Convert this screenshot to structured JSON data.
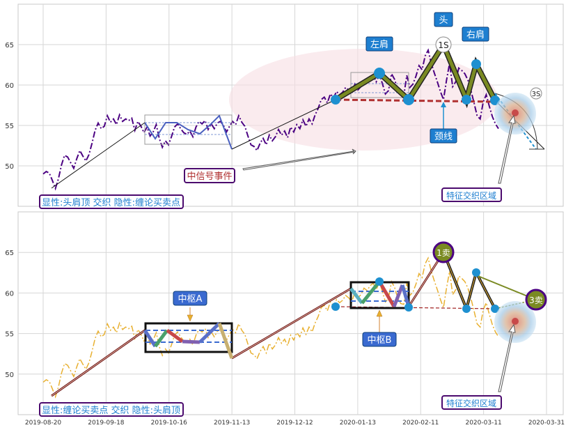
{
  "chart_data": [
    {
      "type": "line",
      "title": "",
      "xlabel": "",
      "ylabel": "",
      "x_tick_labels": [
        "2019-08-20",
        "2019-09-18",
        "2019-10-16",
        "2019-11-13",
        "2019-12-12",
        "2020-01-13",
        "2020-02-11",
        "2020-03-11",
        "2020-03-31"
      ],
      "y_ticks": [
        50,
        55,
        60,
        65
      ],
      "ylim": [
        45,
        70
      ],
      "grid": true,
      "background": "#ffffff",
      "series": [
        {
          "values": [
            49,
            49.3,
            49.1,
            48.2,
            47.2,
            48.4,
            50.1,
            51.3,
            51.1,
            50.4,
            49.7,
            50.9,
            51.9,
            51.2,
            50.6,
            51.4,
            52.8,
            54.4,
            55.3,
            54.6,
            54.9,
            56.2,
            55.4,
            55.8,
            55.1,
            56.3,
            55.5,
            55.8,
            55.6,
            55.9,
            54.4,
            55.5,
            54.9,
            54.1,
            54.8,
            53.7,
            54.2,
            55.1,
            53.4,
            52.3,
            53.1,
            52.6,
            53.6,
            54.8,
            55.2,
            54.6,
            54.1,
            53.9,
            54.3,
            53.6,
            54.8,
            55.5,
            55.2,
            55.6,
            54.5,
            55.2,
            54.6,
            55.3,
            55.5,
            55,
            54.2,
            54.9,
            55.5,
            55.1,
            56.2,
            55.4,
            54.9,
            53.7,
            52.6,
            52.4,
            51.9,
            52.8,
            53.4,
            52.6,
            53.8,
            53.1,
            53.6,
            54.5,
            53.8,
            54.3,
            53.5,
            54.8,
            54.2,
            55.1,
            54.6,
            55.7,
            54.9,
            55.8,
            55.2,
            56.3,
            57.1,
            58.2,
            58.5,
            57.8,
            58.9,
            58.4,
            59.2,
            58.8,
            59.1,
            59.7,
            59.4,
            58.9,
            60.1,
            59.4,
            59.8,
            60.6,
            60.3,
            60.9,
            61.2,
            60.4,
            61.3,
            60.2,
            58.9,
            59.3,
            61.4,
            60.7,
            59.4,
            58.7,
            58.6,
            61.2,
            59.7,
            60.1,
            61.1,
            62.4,
            61.9,
            63.6,
            64.3,
            62.7,
            61.5,
            60.4,
            59.2,
            58.2,
            60.6,
            62.7,
            59.8,
            60.4,
            62.1,
            61.8,
            61.4,
            60.6,
            59.3,
            57.8,
            56.2,
            55.8,
            57.9,
            58.8,
            57.4,
            56.1,
            55.2,
            54.6
          ]
        }
      ]
    },
    {
      "type": "line",
      "title": "",
      "xlabel": "",
      "ylabel": "",
      "x_tick_labels": [
        "2019-08-20",
        "2019-09-18",
        "2019-10-16",
        "2019-11-13",
        "2019-12-12",
        "2020-01-13",
        "2020-02-11",
        "2020-03-11",
        "2020-03-31"
      ],
      "y_ticks": [
        50,
        55,
        60,
        65
      ],
      "ylim": [
        45,
        70
      ],
      "grid": true,
      "background": "#ffffff",
      "series": [
        {
          "values": [
            49,
            49.3,
            49.1,
            48.2,
            47.2,
            48.4,
            50.1,
            51.3,
            51.1,
            50.4,
            49.7,
            50.9,
            51.9,
            51.2,
            50.6,
            51.4,
            52.8,
            54.4,
            55.3,
            54.6,
            54.9,
            56.2,
            55.4,
            55.8,
            55.1,
            56.3,
            55.5,
            55.8,
            55.6,
            55.9,
            54.4,
            55.5,
            54.9,
            54.1,
            54.8,
            53.7,
            54.2,
            55.1,
            53.4,
            52.3,
            53.1,
            52.6,
            53.6,
            54.8,
            55.2,
            54.6,
            54.1,
            53.9,
            54.3,
            53.6,
            54.8,
            55.5,
            55.2,
            55.6,
            54.5,
            55.2,
            54.6,
            55.3,
            55.5,
            55,
            54.2,
            54.9,
            55.5,
            55.1,
            56.2,
            55.4,
            54.9,
            53.7,
            52.6,
            52.4,
            51.9,
            52.8,
            53.4,
            52.6,
            53.8,
            53.1,
            53.6,
            54.5,
            53.8,
            54.3,
            53.5,
            54.8,
            54.2,
            55.1,
            54.6,
            55.7,
            54.9,
            55.8,
            55.2,
            56.3,
            57.1,
            58.2,
            58.5,
            57.8,
            58.9,
            58.4,
            59.2,
            58.8,
            59.1,
            59.7,
            59.4,
            58.9,
            60.1,
            59.4,
            59.8,
            60.6,
            60.3,
            60.9,
            61.2,
            60.4,
            61.3,
            60.2,
            58.9,
            59.3,
            61.4,
            60.7,
            59.4,
            58.7,
            58.6,
            61.2,
            59.7,
            60.1,
            61.1,
            62.4,
            61.9,
            63.6,
            64.3,
            62.7,
            61.5,
            60.4,
            59.2,
            58.2,
            60.6,
            62.7,
            59.8,
            60.4,
            62.1,
            61.8,
            61.4,
            60.6,
            59.3,
            57.8,
            56.2,
            55.8,
            57.9,
            58.8,
            57.4,
            56.1,
            55.2,
            54.6
          ]
        }
      ]
    }
  ],
  "top_panel": {
    "label_main": "显性:头肩顶 交织 隐性:缠论买卖点",
    "label_event": "中信号事件",
    "label_left_shoulder": "左肩",
    "label_head": "头",
    "label_right_shoulder": "右肩",
    "label_neckline": "颈线",
    "label_zone": "特征交织区域",
    "label_1s": "1S",
    "label_3s": "3S"
  },
  "bottom_panel": {
    "label_main": "显性:缠论买卖点 交织 隐性:头肩顶",
    "label_zhongshu_a": "中枢A",
    "label_zhongshu_b": "中枢B",
    "label_zone": "特征交织区域",
    "label_1sell": "1卖",
    "label_3sell": "3卖"
  },
  "colors": {
    "dashdot_top": "#4b0082",
    "dashdot_bottom": "#e8b030",
    "head_shoulder_fill": "#7a8a22",
    "neckline": "#b03030",
    "marker_blue": "#1e90d0",
    "label_bg_blue": "#1e7fd0",
    "box_border": "#4b0a6e"
  }
}
